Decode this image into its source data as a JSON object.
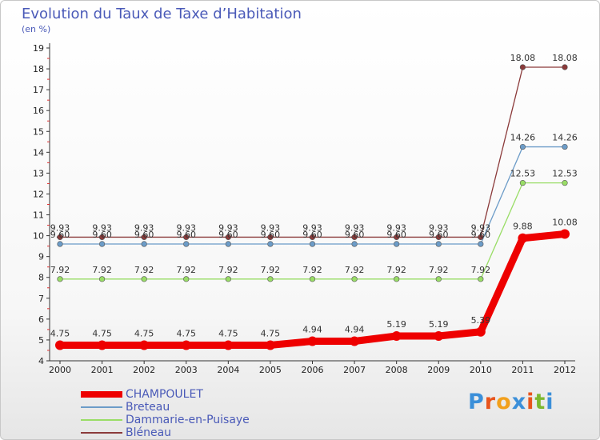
{
  "title": "Evolution du Taux de Taxe d’Habitation",
  "unit_label": "(en %)",
  "logo": {
    "text": "Proxiti",
    "letter_colors": [
      "#3b8fd9",
      "#e8541c",
      "#f2a01c",
      "#3b8fd9",
      "#e8541c",
      "#7cb82f",
      "#3b8fd9"
    ]
  },
  "chart_data": {
    "type": "line",
    "title": "Evolution du Taux de Taxe d’Habitation",
    "ylabel": "(en %)",
    "xlabel": "",
    "x": [
      "2000",
      "2001",
      "2002",
      "2003",
      "2004",
      "2005",
      "2006",
      "2007",
      "2008",
      "2009",
      "2010",
      "2011",
      "2012"
    ],
    "ylim": [
      4,
      19
    ],
    "yticks": [
      "4",
      "5",
      "6",
      "7",
      "8",
      "9",
      "10",
      "11",
      "12",
      "13",
      "14",
      "15",
      "16",
      "17",
      "18",
      "19"
    ],
    "grid": false,
    "legend_position": "bottom-left",
    "series": [
      {
        "name": "CHAMPOULET",
        "color": "#ee0000",
        "values": [
          4.75,
          4.75,
          4.75,
          4.75,
          4.75,
          4.75,
          4.94,
          4.94,
          5.19,
          5.19,
          5.39,
          9.88,
          10.08
        ],
        "labels": [
          "4.75",
          "4.75",
          "4.75",
          "4.75",
          "4.75",
          "4.75",
          "4.94",
          "4.94",
          "5.19",
          "5.19",
          "5.39",
          "9.88",
          "10.08"
        ]
      },
      {
        "name": "Breteau",
        "color": "#6c9cc8",
        "values": [
          9.6,
          9.6,
          9.6,
          9.6,
          9.6,
          9.6,
          9.6,
          9.6,
          9.6,
          9.6,
          9.6,
          14.26,
          14.26
        ],
        "labels": [
          "9.60",
          "9.60",
          "9.60",
          "9.60",
          "9.60",
          "9.60",
          "9.60",
          "9.60",
          "9.60",
          "9.60",
          "9.60",
          "14.26",
          "14.26"
        ]
      },
      {
        "name": "Dammarie-en-Puisaye",
        "color": "#99dd66",
        "values": [
          7.92,
          7.92,
          7.92,
          7.92,
          7.92,
          7.92,
          7.92,
          7.92,
          7.92,
          7.92,
          7.92,
          12.53,
          12.53
        ],
        "labels": [
          "7.92",
          "7.92",
          "7.92",
          "7.92",
          "7.92",
          "7.92",
          "7.92",
          "7.92",
          "7.92",
          "7.92",
          "7.92",
          "12.53",
          "12.53"
        ]
      },
      {
        "name": "Bléneau",
        "color": "#8b3a3a",
        "values": [
          9.93,
          9.93,
          9.93,
          9.93,
          9.93,
          9.93,
          9.93,
          9.93,
          9.93,
          9.93,
          9.93,
          18.08,
          18.08
        ],
        "labels": [
          "9.93",
          "9.93",
          "9.93",
          "9.93",
          "9.93",
          "9.93",
          "9.93",
          "9.93",
          "9.93",
          "9.93",
          "9.93",
          "18.08",
          "18.08"
        ]
      }
    ]
  }
}
